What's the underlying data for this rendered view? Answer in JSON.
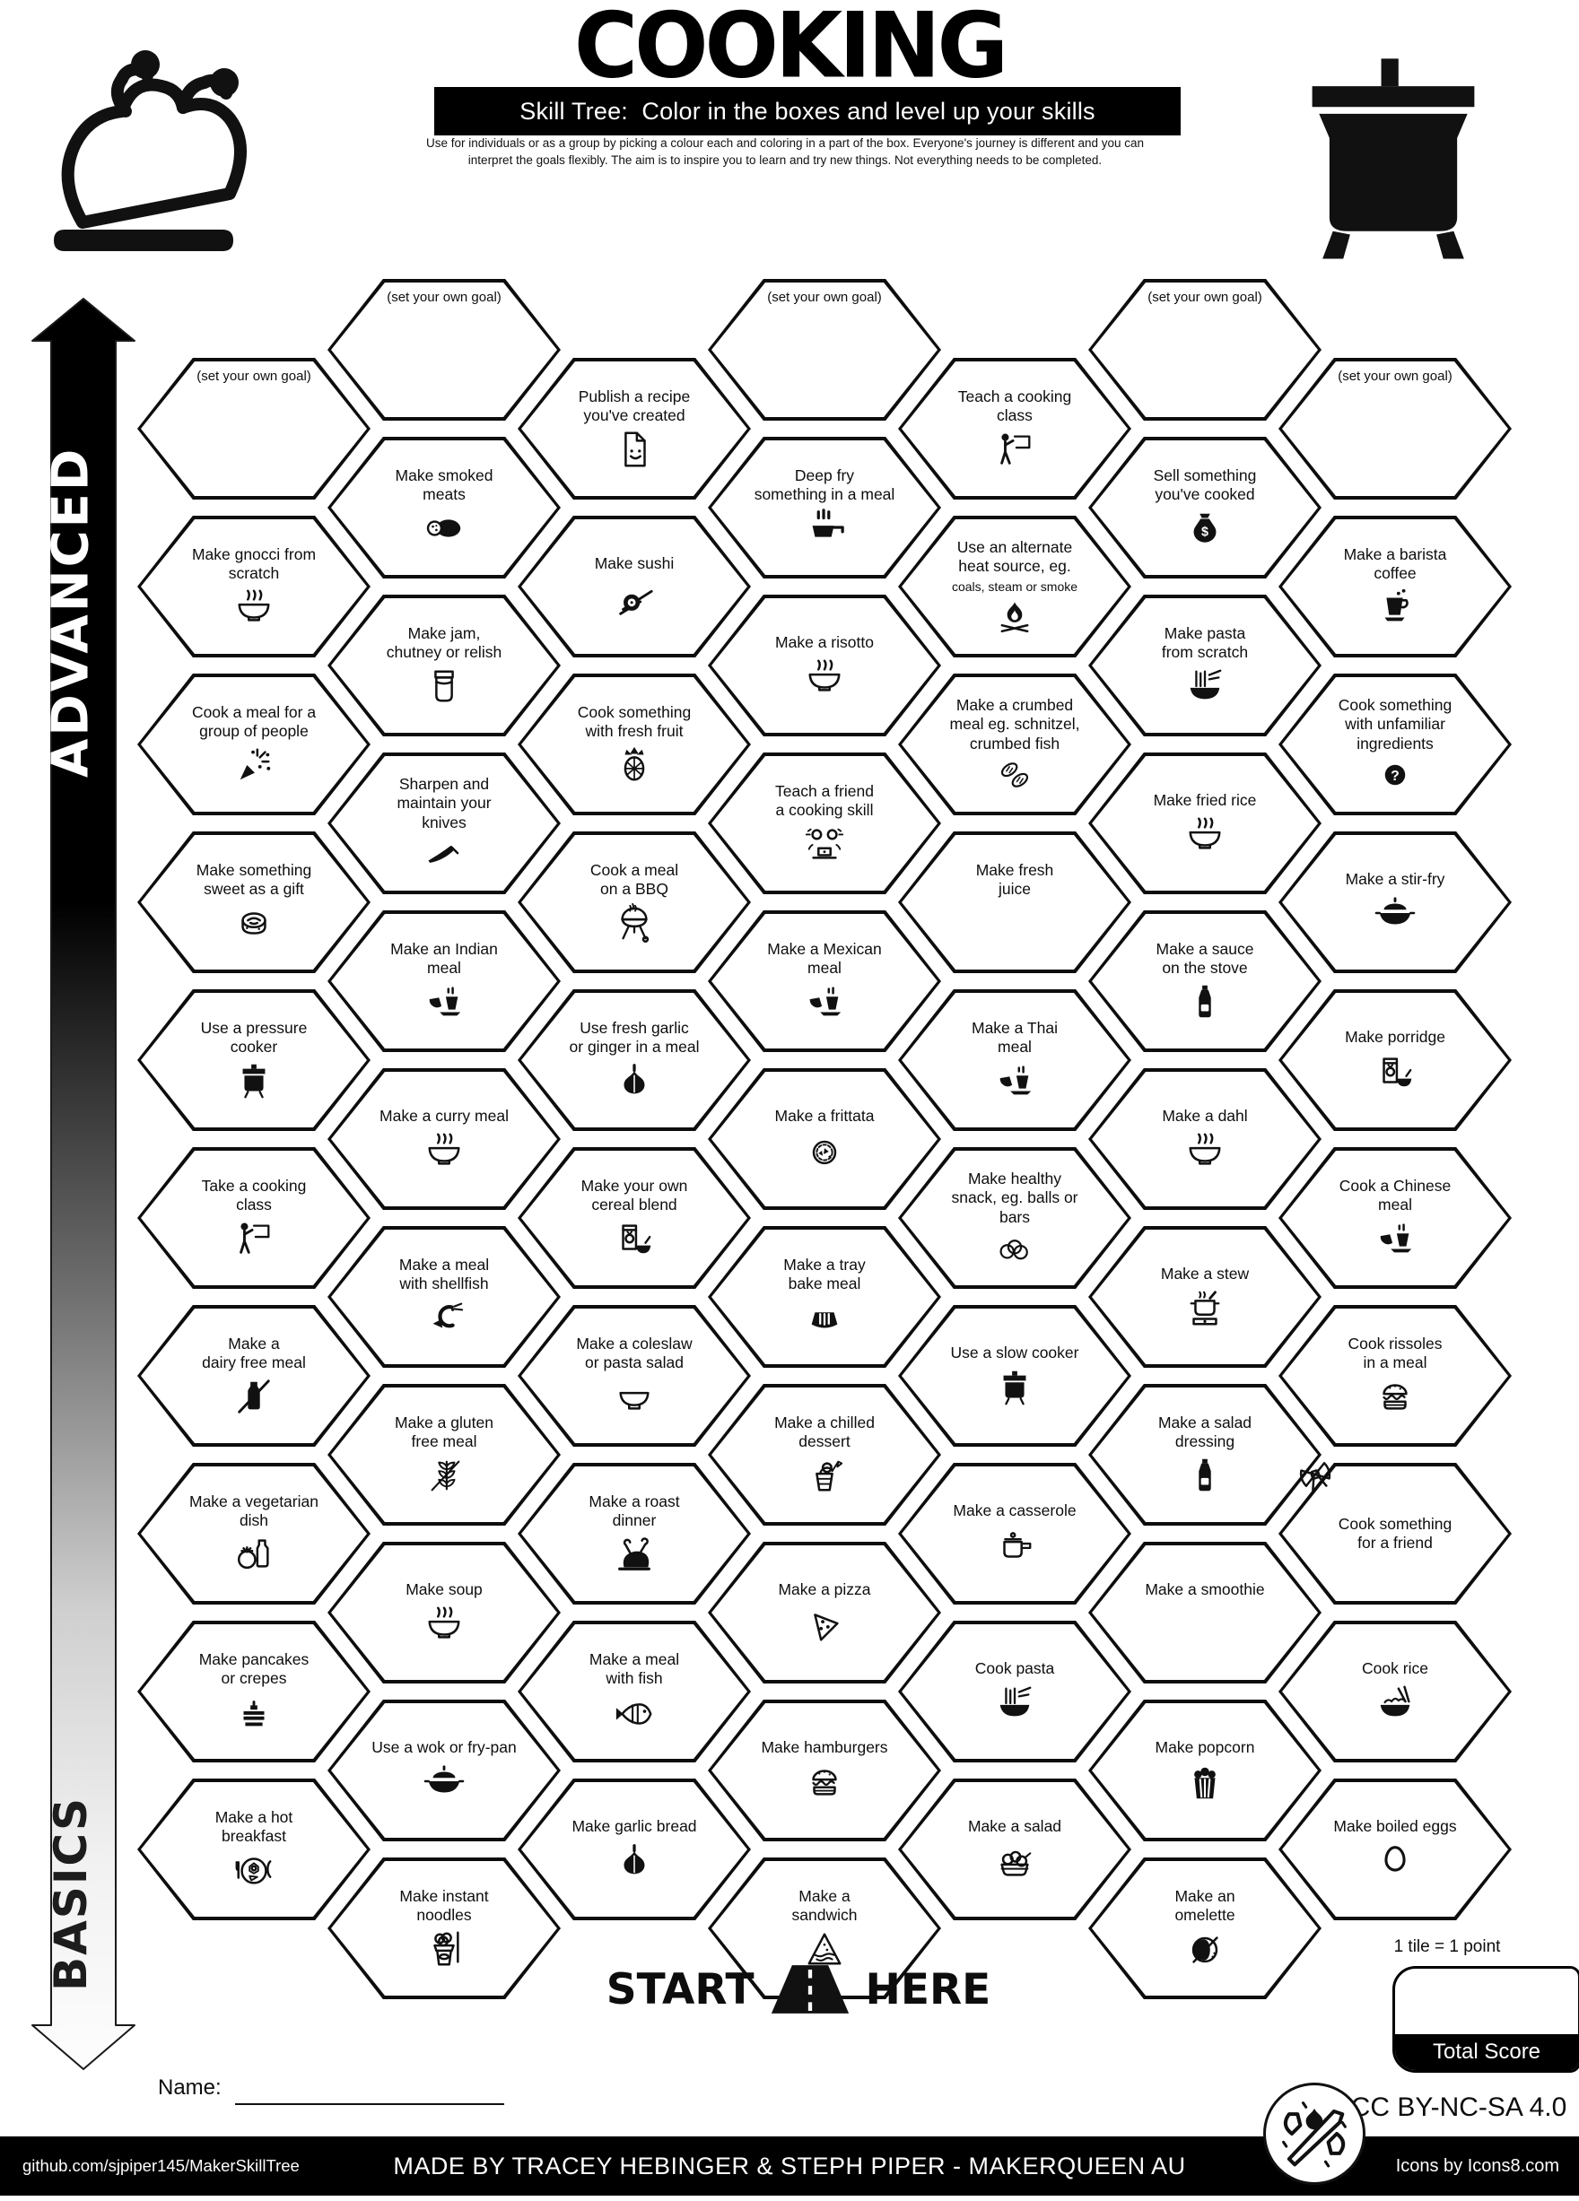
{
  "header": {
    "title": "COOKING",
    "subtitle": "Skill Tree:  Color in the boxes and level up your skills",
    "desc1": "Use for individuals or as a group by picking a colour each and coloring in a part of the box.  Everyone's journey is different and you can",
    "desc2": "interpret the goals flexibly.  The aim is to inspire you to learn and try new things. Not everything needs to be completed.",
    "turkey_icon": "roast-turkey-icon",
    "pot_icon": "cooking-pot-icon"
  },
  "axis": {
    "advanced": "ADVANCED",
    "basics": "BASICS"
  },
  "start": {
    "left": "START",
    "right": "HERE"
  },
  "name_label": "Name:",
  "scoring": {
    "note": "1 tile = 1 point",
    "total": "Total Score"
  },
  "license": "CC BY-NC-SA 4.0",
  "footer": {
    "github": "github.com/sjpiper145/MakerSkillTree",
    "credit": "MADE BY TRACEY HEBINGER & STEPH PIPER  -  MAKERQUEEN AU",
    "icons": "Icons by Icons8.com"
  },
  "grid": {
    "columns": [
      {
        "items": [
          {
            "goal": true,
            "lines": [
              "(set your own goal)"
            ]
          },
          {
            "lines": [
              "Make gnocci from",
              "scratch"
            ],
            "icon": "bowlSteam"
          },
          {
            "lines": [
              "Cook a meal for a",
              "group of people"
            ],
            "icon": "party"
          },
          {
            "lines": [
              "Make something",
              "sweet as a gift"
            ],
            "icon": "roll"
          },
          {
            "lines": [
              "Use a pressure",
              "cooker"
            ],
            "icon": "pot"
          },
          {
            "lines": [
              "Take a cooking",
              "class"
            ],
            "icon": "teacher"
          },
          {
            "lines": [
              "Make a",
              "dairy free meal"
            ],
            "icon": "milkX"
          },
          {
            "lines": [
              "Make a vegetarian",
              "dish"
            ],
            "icon": "tomatoMilk"
          },
          {
            "lines": [
              "Make pancakes",
              "or crepes"
            ],
            "icon": "pancakes"
          },
          {
            "lines": [
              "Make a hot",
              "breakfast"
            ],
            "icon": "plate"
          }
        ]
      },
      {
        "items": [
          {
            "goal": true,
            "lines": [
              "(set your own goal)"
            ]
          },
          {
            "lines": [
              "Make smoked",
              "meats"
            ],
            "icon": "salami"
          },
          {
            "lines": [
              "Make jam,",
              "chutney or relish"
            ],
            "icon": "jar"
          },
          {
            "lines": [
              "Sharpen and",
              "maintain your",
              "knives"
            ],
            "icon": "knife"
          },
          {
            "lines": [
              "Make an Indian",
              "meal"
            ],
            "icon": "cupbowl"
          },
          {
            "lines": [
              "Make a curry meal"
            ],
            "icon": "bowlSteam"
          },
          {
            "lines": [
              "Make a meal",
              "with shellfish"
            ],
            "icon": "shrimp"
          },
          {
            "lines": [
              "Make a gluten",
              "free meal"
            ],
            "icon": "wheatX"
          },
          {
            "lines": [
              "Make soup"
            ],
            "icon": "bowlSteam"
          },
          {
            "lines": [
              "Use a wok or fry-pan"
            ],
            "icon": "wok"
          },
          {
            "lines": [
              "Make instant",
              "noodles"
            ],
            "icon": "noodlebox"
          }
        ]
      },
      {
        "items": [
          {
            "lines": [
              "Publish a recipe",
              "you've created"
            ],
            "icon": "doc"
          },
          {
            "lines": [
              "Make sushi"
            ],
            "icon": "sushi"
          },
          {
            "lines": [
              "Cook something",
              "with fresh fruit"
            ],
            "icon": "pineapple"
          },
          {
            "lines": [
              "Cook a meal",
              "on a BBQ"
            ],
            "icon": "bbq"
          },
          {
            "lines": [
              "Use fresh garlic",
              "or ginger in a meal"
            ],
            "icon": "garlic"
          },
          {
            "lines": [
              "Make your own",
              "cereal blend"
            ],
            "icon": "cereal"
          },
          {
            "lines": [
              "Make a coleslaw",
              "or pasta salad"
            ],
            "icon": "bowl"
          },
          {
            "lines": [
              "Make a roast",
              "dinner"
            ],
            "icon": "turkey"
          },
          {
            "lines": [
              "Make a meal",
              "with fish"
            ],
            "icon": "fish"
          },
          {
            "lines": [
              "Make garlic bread"
            ],
            "icon": "garlic"
          }
        ]
      },
      {
        "items": [
          {
            "goal": true,
            "lines": [
              "(set your own goal)"
            ]
          },
          {
            "lines": [
              "Deep fry",
              "something in a meal"
            ],
            "icon": "pan"
          },
          {
            "lines": [
              "Make a risotto"
            ],
            "icon": "bowlSteam"
          },
          {
            "lines": [
              "Teach a friend",
              "a cooking skill"
            ],
            "icon": "laptop2"
          },
          {
            "lines": [
              "Make a Mexican",
              "meal"
            ],
            "icon": "cupbowl"
          },
          {
            "lines": [
              "Make a frittata"
            ],
            "icon": "pie"
          },
          {
            "lines": [
              "Make a tray",
              "bake meal"
            ],
            "icon": "traybake"
          },
          {
            "lines": [
              "Make a chilled",
              "dessert"
            ],
            "icon": "dessert"
          },
          {
            "lines": [
              "Make a pizza"
            ],
            "icon": "pizza"
          },
          {
            "lines": [
              "Make hamburgers"
            ],
            "icon": "burger"
          },
          {
            "lines": [
              "Make a",
              "sandwich"
            ],
            "icon": "sandwich"
          }
        ]
      },
      {
        "items": [
          {
            "lines": [
              "Teach a cooking",
              "class"
            ],
            "icon": "teacher"
          },
          {
            "lines": [
              "Use an alternate",
              "heat source, eg."
            ],
            "sub": "coals, steam or smoke",
            "icon": "campfire"
          },
          {
            "lines": [
              "Make a crumbed",
              "meal eg. schnitzel,",
              "crumbed fish"
            ],
            "icon": "schnitzel"
          },
          {
            "lines": [
              "Make fresh",
              "juice"
            ],
            "icon": "juicejar"
          },
          {
            "lines": [
              "Make a Thai",
              "meal"
            ],
            "icon": "cupbowl"
          },
          {
            "lines": [
              "Make healthy",
              "snack, eg. balls or",
              "bars"
            ],
            "icon": "eggs3"
          },
          {
            "lines": [
              "Use a slow cooker"
            ],
            "icon": "pot"
          },
          {
            "lines": [
              "Make a casserole"
            ],
            "icon": "casserole"
          },
          {
            "lines": [
              "Cook pasta"
            ],
            "icon": "pasta"
          },
          {
            "lines": [
              "Make a salad"
            ],
            "icon": "salad"
          }
        ]
      },
      {
        "items": [
          {
            "goal": true,
            "lines": [
              "(set your own goal)"
            ]
          },
          {
            "lines": [
              "Sell something",
              "you've cooked"
            ],
            "icon": "money"
          },
          {
            "lines": [
              "Make pasta",
              "from scratch"
            ],
            "icon": "pasta"
          },
          {
            "lines": [
              "Make fried rice"
            ],
            "icon": "bowlSteam"
          },
          {
            "lines": [
              "Make a sauce",
              "on the stove"
            ],
            "icon": "bottle"
          },
          {
            "lines": [
              "Make a dahl"
            ],
            "icon": "bowlSteam"
          },
          {
            "lines": [
              "Make a stew"
            ],
            "icon": "stewpot"
          },
          {
            "lines": [
              "Make a salad",
              "dressing"
            ],
            "icon": "bottle"
          },
          {
            "lines": [
              "Make a smoothie"
            ],
            "icon": "juicejar"
          },
          {
            "lines": [
              "Make popcorn"
            ],
            "icon": "popcorn"
          },
          {
            "lines": [
              "Make an",
              "omelette"
            ],
            "icon": "omelette"
          }
        ]
      },
      {
        "items": [
          {
            "goal": true,
            "lines": [
              "(set your own goal)"
            ]
          },
          {
            "lines": [
              "Make a barista",
              "coffee"
            ],
            "icon": "coffee"
          },
          {
            "lines": [
              "Cook something",
              "with unfamiliar",
              "ingredients"
            ],
            "icon": "question"
          },
          {
            "lines": [
              "Make a stir-fry"
            ],
            "icon": "wok"
          },
          {
            "lines": [
              "Make porridge"
            ],
            "icon": "cereal"
          },
          {
            "lines": [
              "Cook a Chinese",
              "meal"
            ],
            "icon": "cupbowl"
          },
          {
            "lines": [
              "Cook rissoles",
              "in a meal"
            ],
            "icon": "burger"
          },
          {
            "lines": [
              "Cook something",
              "for a friend"
            ],
            "deco": "bow"
          },
          {
            "lines": [
              "Cook rice"
            ],
            "icon": "rice"
          },
          {
            "lines": [
              "Make boiled eggs"
            ],
            "icon": "egg1"
          }
        ]
      }
    ]
  }
}
